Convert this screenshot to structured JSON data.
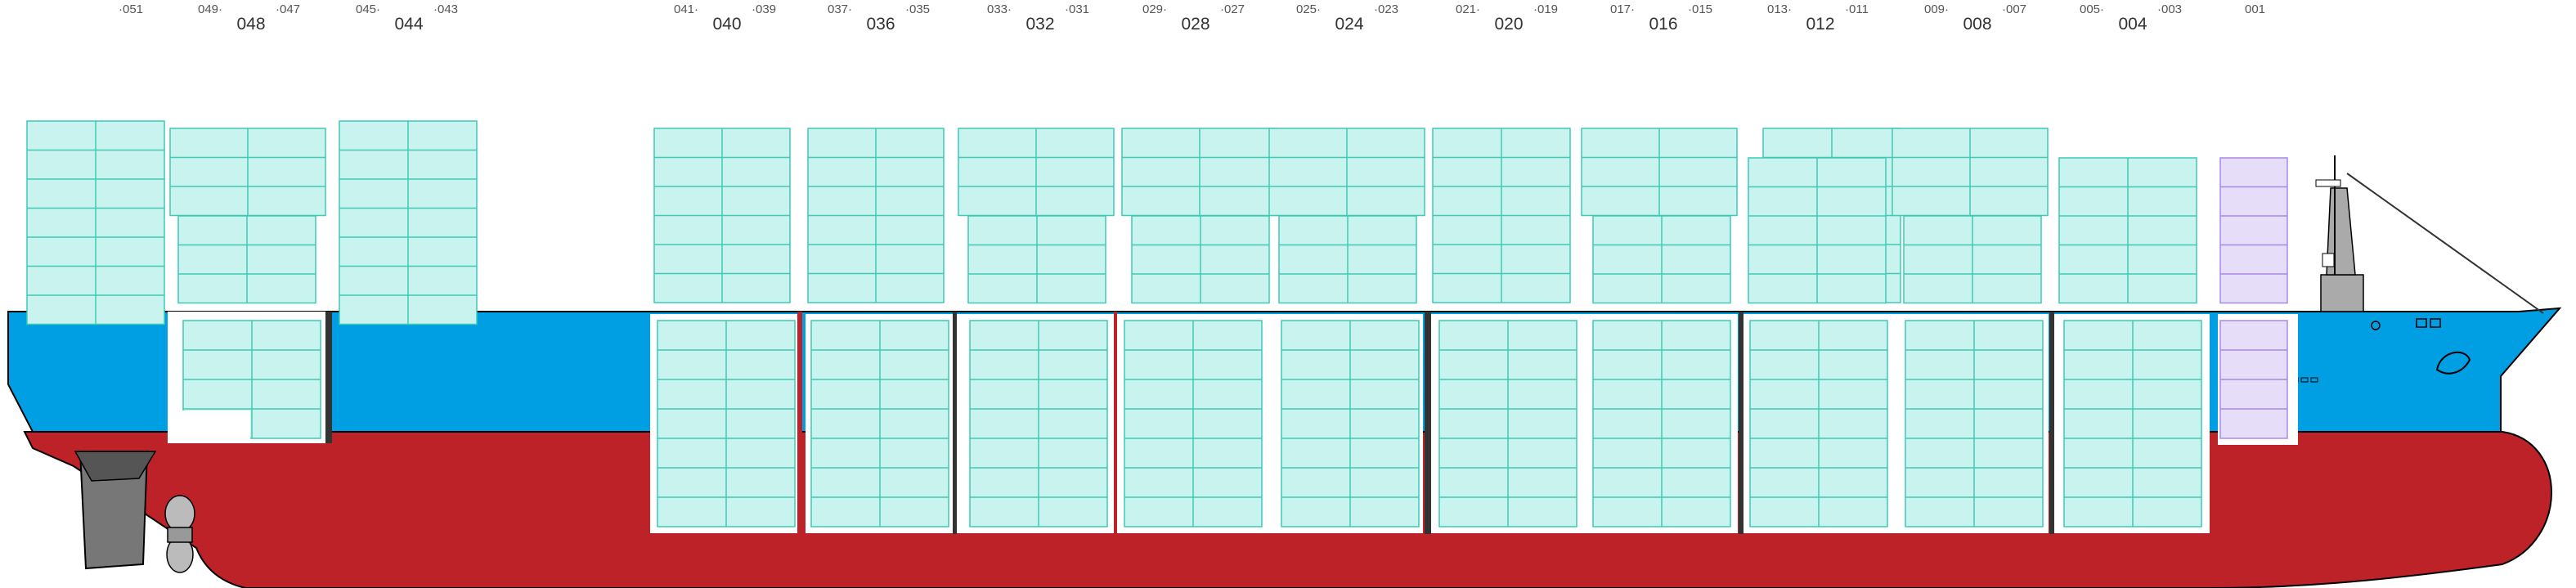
{
  "colors": {
    "hull_red": "#bd2229",
    "hull_blue": "#009fe3",
    "container_fill": "#c8f3ee",
    "container_stroke": "#3fc9b6",
    "reefer_fill": "#e6ddf8",
    "reefer_stroke": "#a88ae6",
    "machinery_gray": "#777777"
  },
  "bays": [
    {
      "main": "048",
      "sub_left": "049",
      "sub_right": "047"
    },
    {
      "main": "044",
      "sub_left": "045",
      "sub_right": "043"
    },
    {
      "main": "040",
      "sub_left": "041",
      "sub_right": "039"
    },
    {
      "main": "036",
      "sub_left": "037",
      "sub_right": "035"
    },
    {
      "main": "032",
      "sub_left": "033",
      "sub_right": "031"
    },
    {
      "main": "028",
      "sub_left": "029",
      "sub_right": "027"
    },
    {
      "main": "024",
      "sub_left": "025",
      "sub_right": "023"
    },
    {
      "main": "020",
      "sub_left": "021",
      "sub_right": "019"
    },
    {
      "main": "016",
      "sub_left": "017",
      "sub_right": "015"
    },
    {
      "main": "012",
      "sub_left": "013",
      "sub_right": "011"
    },
    {
      "main": "008",
      "sub_left": "009",
      "sub_right": "007"
    },
    {
      "main": "004",
      "sub_left": "005",
      "sub_right": "003"
    }
  ],
  "single_bays": [
    {
      "label": "051"
    },
    {
      "label": "001"
    }
  ]
}
